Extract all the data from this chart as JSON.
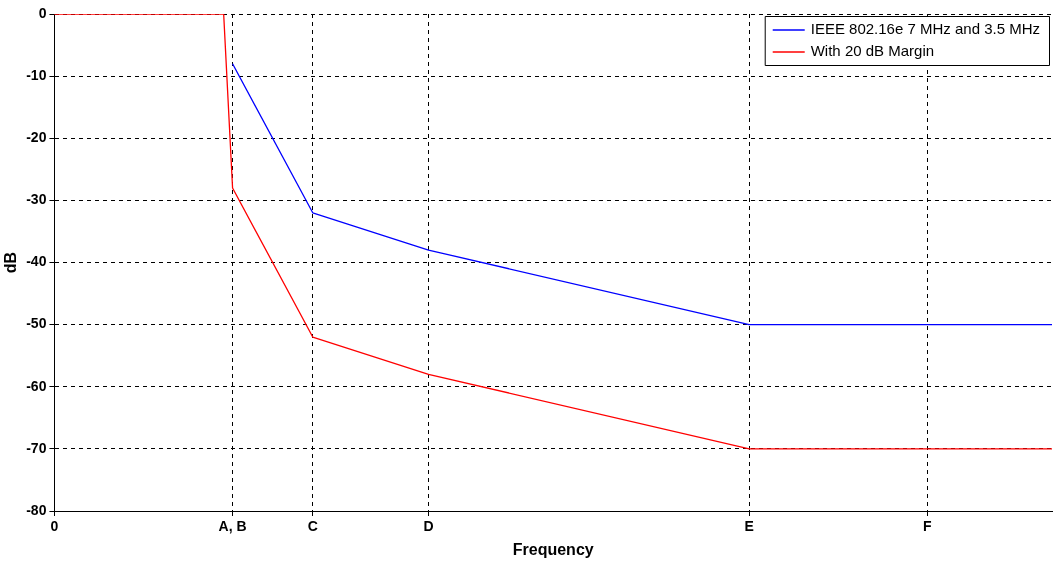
{
  "chart_data": {
    "type": "line",
    "xlabel": "Frequency",
    "ylabel": "dB",
    "categories": [
      "0",
      null,
      null,
      null,
      null,
      null,
      null,
      null,
      null,
      null,
      null,
      null,
      null,
      null,
      null,
      null,
      null,
      null,
      null,
      null,
      "A, B",
      null,
      null,
      null,
      null,
      null,
      null,
      null,
      null,
      "C",
      null,
      null,
      null,
      null,
      null,
      null,
      null,
      null,
      null,
      null,
      null,
      null,
      "D",
      null,
      null,
      null,
      null,
      null,
      null,
      null,
      null,
      null,
      null,
      null,
      null,
      null,
      null,
      null,
      null,
      null,
      null,
      null,
      null,
      null,
      null,
      null,
      null,
      null,
      null,
      null,
      null,
      null,
      null,
      null,
      null,
      null,
      null,
      null,
      "E",
      null,
      null,
      null,
      null,
      null,
      null,
      null,
      null,
      null,
      null,
      null,
      null,
      null,
      null,
      null,
      null,
      null,
      null,
      null,
      "F",
      null,
      null,
      null,
      null,
      null,
      null,
      null,
      null,
      null,
      null,
      null,
      null,
      null,
      null
    ],
    "ylim": [
      -80,
      0
    ],
    "yticks": [
      -80,
      -70,
      -60,
      -50,
      -40,
      -30,
      -20,
      -10,
      0
    ],
    "grid": true,
    "legend": "top right",
    "marker": "none",
    "series": [
      {
        "name": "IEEE 802.16e 7 MHz and 3.5 MHz",
        "color": "#0000ff",
        "values": [
          null,
          null,
          null,
          null,
          null,
          null,
          null,
          null,
          null,
          null,
          null,
          null,
          null,
          null,
          null,
          null,
          null,
          null,
          null,
          null,
          -8,
          null,
          null,
          null,
          null,
          null,
          null,
          null,
          null,
          -32,
          null,
          null,
          null,
          null,
          null,
          null,
          null,
          null,
          null,
          null,
          null,
          null,
          -38,
          null,
          null,
          null,
          null,
          null,
          null,
          null,
          null,
          null,
          null,
          null,
          null,
          null,
          null,
          null,
          null,
          null,
          null,
          null,
          null,
          null,
          null,
          null,
          null,
          null,
          null,
          null,
          null,
          null,
          null,
          null,
          null,
          null,
          null,
          null,
          -50,
          null,
          null,
          null,
          null,
          null,
          null,
          null,
          null,
          null,
          null,
          null,
          null,
          null,
          null,
          null,
          null,
          null,
          null,
          null,
          null,
          null,
          null,
          null,
          null,
          null,
          null,
          null,
          null,
          null,
          null,
          null,
          null,
          null,
          -50
        ]
      },
      {
        "name": "With 20 dB Margin",
        "color": "#ff0000",
        "values": [
          0,
          null,
          null,
          null,
          null,
          null,
          null,
          null,
          null,
          null,
          null,
          null,
          null,
          null,
          null,
          null,
          null,
          null,
          null,
          0,
          -28,
          null,
          null,
          null,
          null,
          null,
          null,
          null,
          null,
          -52,
          null,
          null,
          null,
          null,
          null,
          null,
          null,
          null,
          null,
          null,
          null,
          null,
          -58,
          null,
          null,
          null,
          null,
          null,
          null,
          null,
          null,
          null,
          null,
          null,
          null,
          null,
          null,
          null,
          null,
          null,
          null,
          null,
          null,
          null,
          null,
          null,
          null,
          null,
          null,
          null,
          null,
          null,
          null,
          null,
          null,
          null,
          null,
          null,
          -70,
          null,
          null,
          null,
          null,
          null,
          null,
          null,
          null,
          null,
          null,
          null,
          null,
          null,
          null,
          null,
          null,
          null,
          null,
          null,
          null,
          null,
          null,
          null,
          null,
          null,
          null,
          null,
          null,
          null,
          null,
          null,
          null,
          null,
          -70
        ]
      }
    ]
  }
}
